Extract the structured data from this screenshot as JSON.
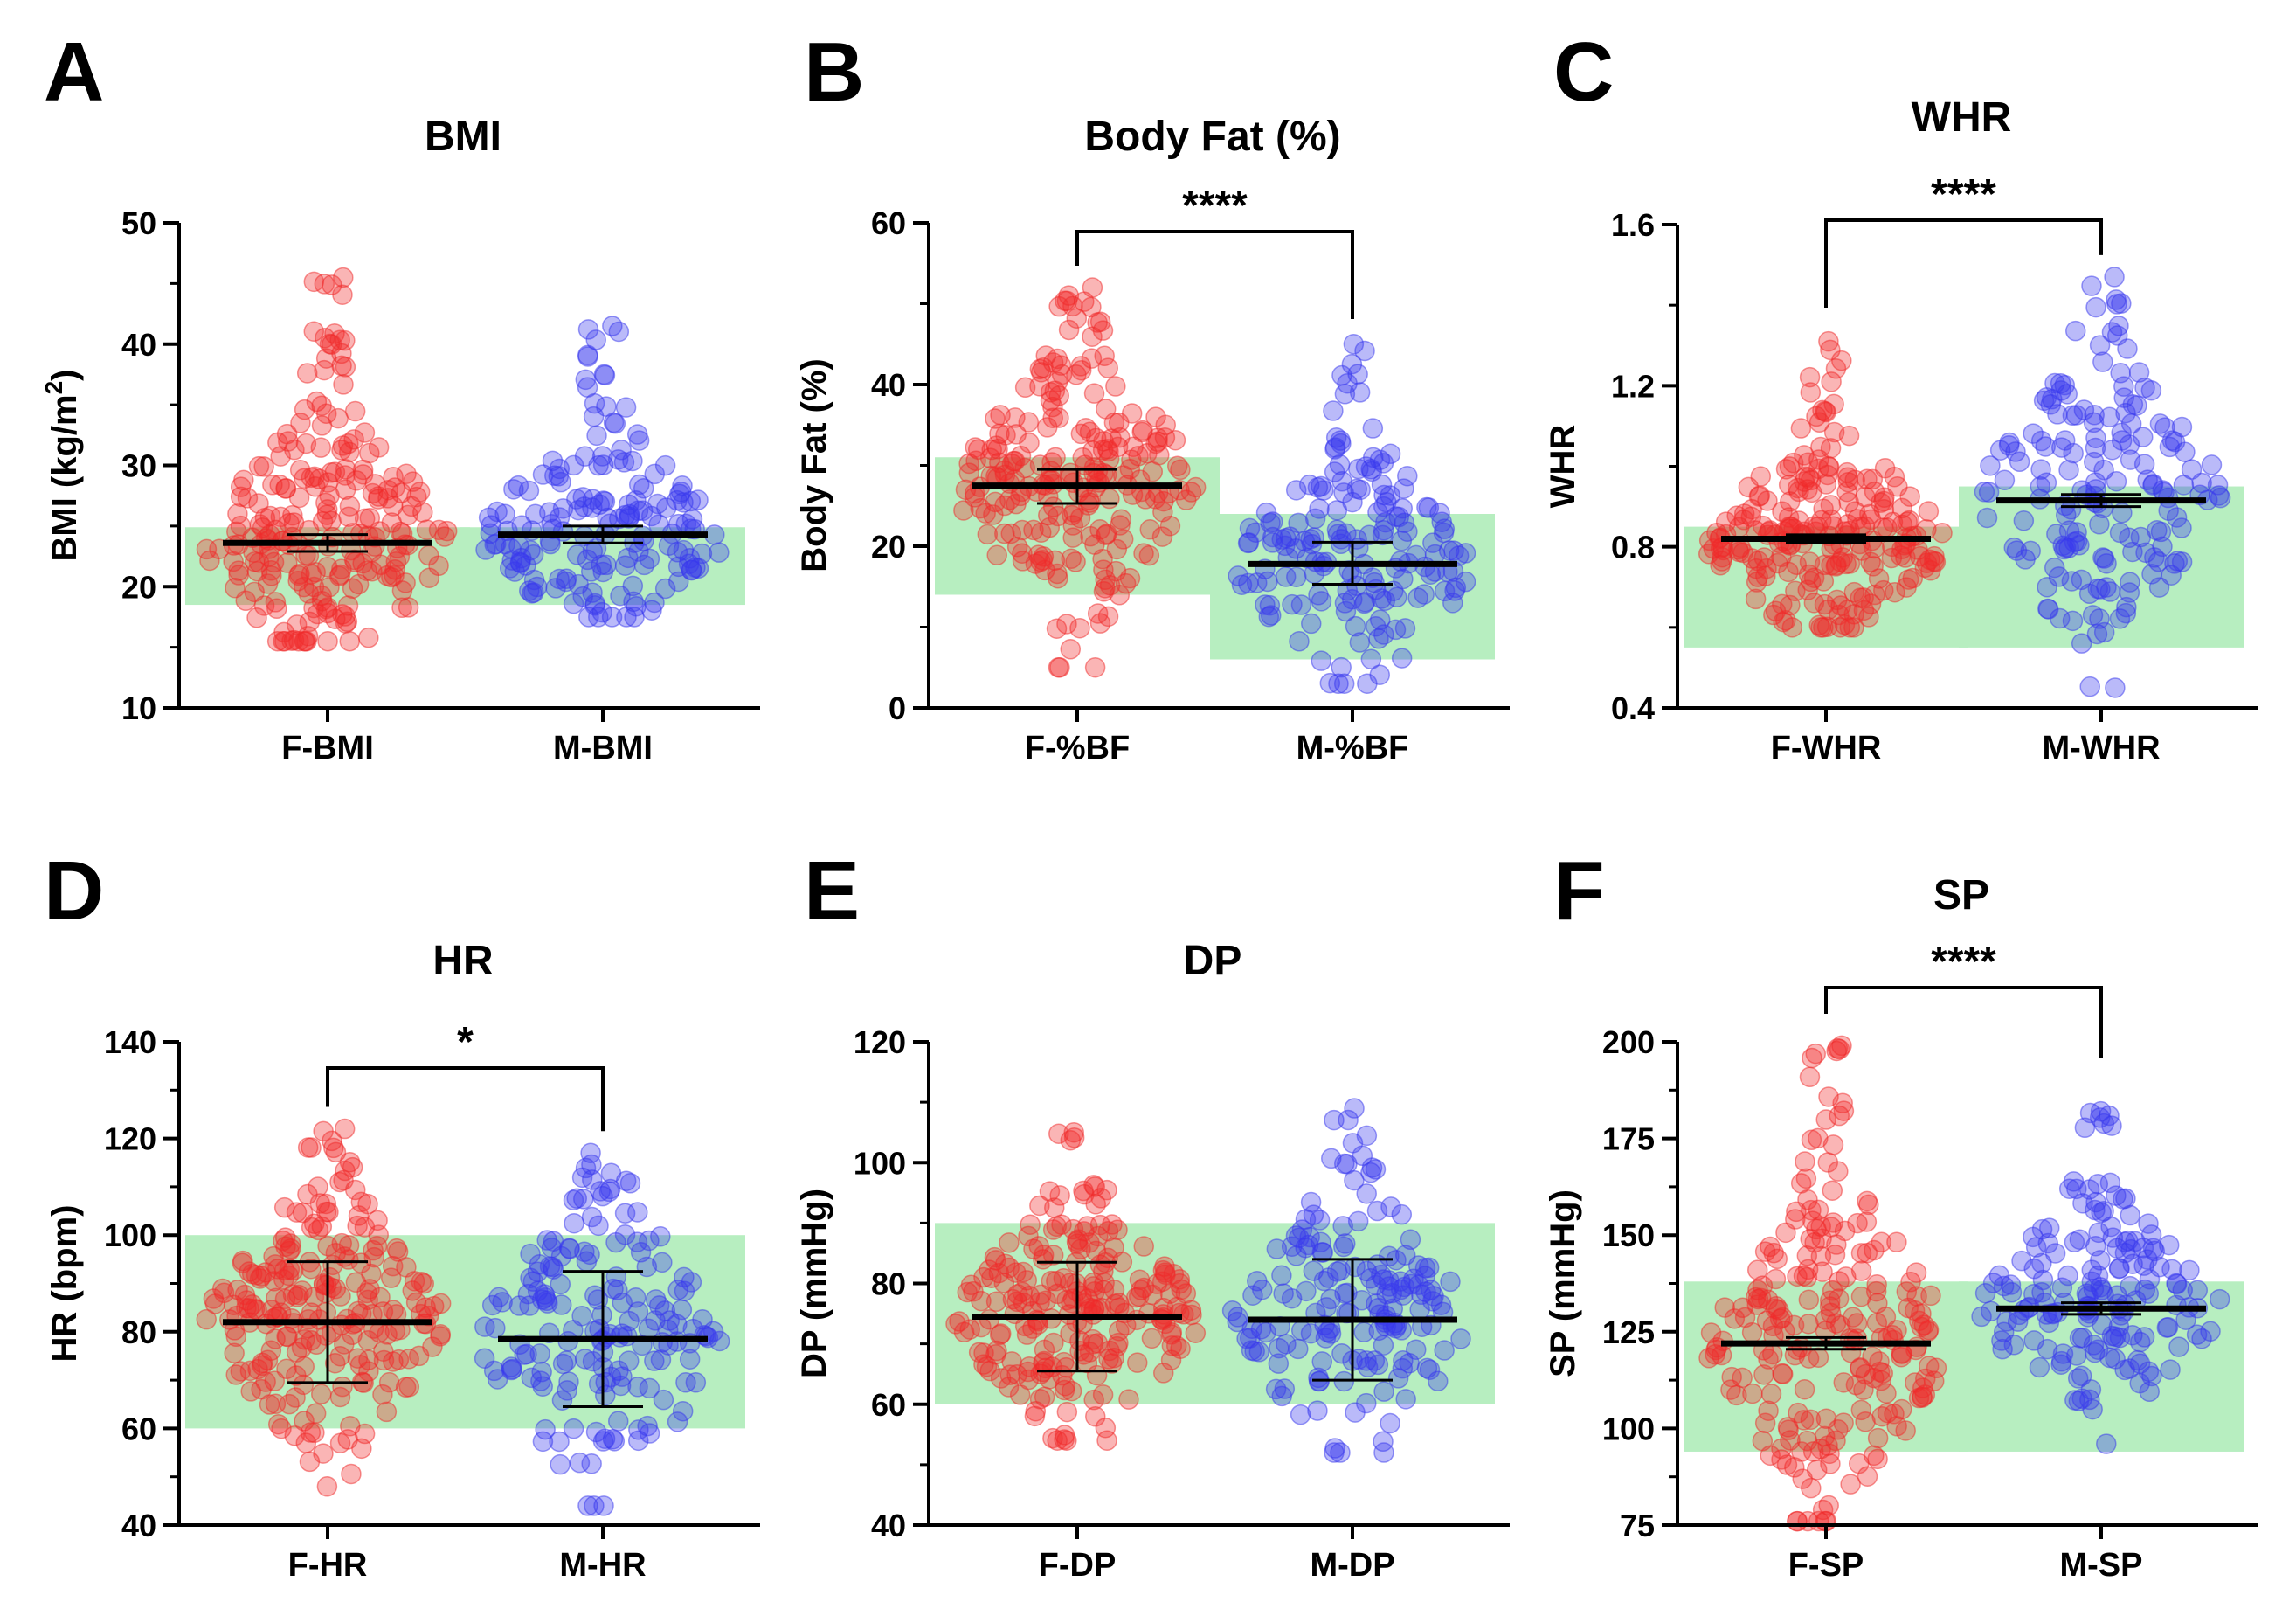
{
  "colors": {
    "female": "#f02a2a",
    "male": "#3838ee",
    "reference_band": "#b7eec0",
    "axis": "#000000"
  },
  "chart_data": [
    {
      "panel": "A",
      "type": "scatter",
      "title": "BMI",
      "ylabel": "BMI (kg/m2)",
      "ylim": [
        10,
        50
      ],
      "yticks": [
        10,
        20,
        30,
        40,
        50
      ],
      "categories": [
        "F-BMI",
        "M-BMI"
      ],
      "reference_range": {
        "F-BMI": [
          18.5,
          24.9
        ],
        "M-BMI": [
          18.5,
          24.9
        ]
      },
      "summary": [
        {
          "category": "F-BMI",
          "mean": 23.6,
          "error_low": 22.9,
          "error_high": 24.3,
          "min": 15.5,
          "max": 45.5
        },
        {
          "category": "M-BMI",
          "mean": 24.3,
          "error_low": 23.6,
          "error_high": 25.0,
          "min": 17.5,
          "max": 41.5
        }
      ],
      "significance": null
    },
    {
      "panel": "B",
      "type": "scatter",
      "title": "Body Fat (%)",
      "ylabel": "Body Fat (%)",
      "ylim": [
        0,
        60
      ],
      "yticks": [
        0,
        20,
        40,
        60
      ],
      "categories": [
        "F-%BF",
        "M-%BF"
      ],
      "reference_range": {
        "F-%BF": [
          14,
          31
        ],
        "M-%BF": [
          6,
          24
        ]
      },
      "summary": [
        {
          "category": "F-%BF",
          "mean": 27.5,
          "error_low": 25.3,
          "error_high": 29.5,
          "min": 5,
          "max": 52
        },
        {
          "category": "M-%BF",
          "mean": 17.8,
          "error_low": 15.3,
          "error_high": 20.5,
          "min": 3,
          "max": 45
        }
      ],
      "significance": "****"
    },
    {
      "panel": "C",
      "type": "scatter",
      "title": "WHR",
      "ylabel": "WHR",
      "ylim": [
        0.4,
        1.6
      ],
      "yticks": [
        0.4,
        0.8,
        1.2,
        1.6
      ],
      "categories": [
        "F-WHR",
        "M-WHR"
      ],
      "reference_range": {
        "F-WHR": [
          0.55,
          0.85
        ],
        "M-WHR": [
          0.55,
          0.95
        ]
      },
      "summary": [
        {
          "category": "F-WHR",
          "mean": 0.82,
          "error_low": 0.81,
          "error_high": 0.83,
          "min": 0.6,
          "max": 1.31
        },
        {
          "category": "M-WHR",
          "mean": 0.915,
          "error_low": 0.9,
          "error_high": 0.93,
          "min": 0.45,
          "max": 1.47
        }
      ],
      "significance": "****"
    },
    {
      "panel": "D",
      "type": "scatter",
      "title": "HR",
      "ylabel": "HR (bpm)",
      "ylim": [
        40,
        140
      ],
      "yticks": [
        40,
        60,
        80,
        100,
        120,
        140
      ],
      "categories": [
        "F-HR",
        "M-HR"
      ],
      "reference_range": {
        "F-HR": [
          60,
          100
        ],
        "M-HR": [
          60,
          100
        ]
      },
      "summary": [
        {
          "category": "F-HR",
          "mean": 82,
          "error_low": 69.5,
          "error_high": 94.5,
          "min": 48,
          "max": 122
        },
        {
          "category": "M-HR",
          "mean": 78.5,
          "error_low": 64.5,
          "error_high": 92.5,
          "min": 44,
          "max": 117
        }
      ],
      "significance": "*"
    },
    {
      "panel": "E",
      "type": "scatter",
      "title": "DP",
      "ylabel": "DP (mmHg)",
      "ylim": [
        40,
        120
      ],
      "yticks": [
        40,
        60,
        80,
        100,
        120
      ],
      "categories": [
        "F-DP",
        "M-DP"
      ],
      "reference_range": {
        "F-DP": [
          60,
          90
        ],
        "M-DP": [
          60,
          90
        ]
      },
      "summary": [
        {
          "category": "F-DP",
          "mean": 74.5,
          "error_low": 65.5,
          "error_high": 83.5,
          "min": 54,
          "max": 105
        },
        {
          "category": "M-DP",
          "mean": 74,
          "error_low": 64,
          "error_high": 84,
          "min": 52,
          "max": 109
        }
      ],
      "significance": null
    },
    {
      "panel": "F",
      "type": "scatter",
      "title": "SP",
      "ylabel": "SP (mmHg)",
      "ylim": [
        75,
        200
      ],
      "yticks": [
        75,
        100,
        125,
        150,
        175,
        200
      ],
      "categories": [
        "F-SP",
        "M-SP"
      ],
      "reference_range": {
        "F-SP": [
          94,
          138
        ],
        "M-SP": [
          94,
          138
        ]
      },
      "summary": [
        {
          "category": "F-SP",
          "mean": 122,
          "error_low": 120.5,
          "error_high": 123.5,
          "min": 76,
          "max": 199
        },
        {
          "category": "M-SP",
          "mean": 131,
          "error_low": 129.5,
          "error_high": 132.5,
          "min": 96,
          "max": 182
        }
      ],
      "significance": "****"
    }
  ]
}
